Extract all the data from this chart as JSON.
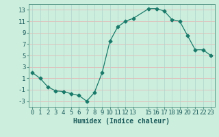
{
  "x": [
    0,
    1,
    2,
    3,
    4,
    5,
    6,
    7,
    8,
    9,
    10,
    11,
    12,
    13,
    15,
    16,
    17,
    18,
    19,
    20,
    21,
    22,
    23
  ],
  "y": [
    2,
    1,
    -0.5,
    -1.2,
    -1.3,
    -1.7,
    -2,
    -3,
    -1.5,
    2,
    7.5,
    10,
    11,
    11.5,
    13.2,
    13.2,
    12.8,
    11.3,
    11,
    8.5,
    6,
    6,
    5
  ],
  "line_color": "#1a7a6a",
  "marker": "D",
  "marker_size": 2.5,
  "bg_color": "#cceedd",
  "grid_color_h": "#e8b0b0",
  "grid_color_v": "#b0d4cc",
  "xlabel": "Humidex (Indice chaleur)",
  "xlim": [
    -0.5,
    23.5
  ],
  "ylim": [
    -4,
    14
  ],
  "yticks": [
    -3,
    -1,
    1,
    3,
    5,
    7,
    9,
    11,
    13
  ],
  "xticks": [
    0,
    1,
    2,
    3,
    4,
    5,
    6,
    7,
    8,
    9,
    10,
    11,
    12,
    13,
    15,
    16,
    17,
    18,
    19,
    20,
    21,
    22,
    23
  ],
  "xlabel_fontsize": 7,
  "tick_fontsize": 6.5,
  "tick_color": "#1a5a5a",
  "label_color": "#1a5a5a"
}
